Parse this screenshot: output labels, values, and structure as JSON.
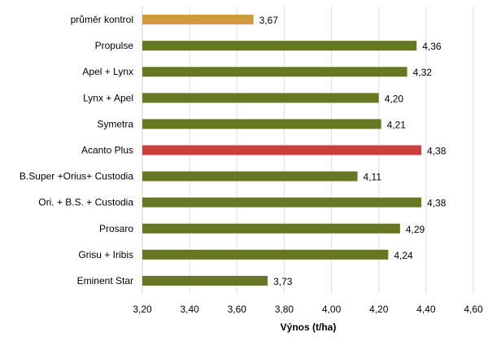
{
  "chart_data": {
    "type": "bar",
    "orientation": "horizontal",
    "categories": [
      "průměr kontrol",
      "Propulse",
      "Apel + Lynx",
      "Lynx + Apel",
      "Symetra",
      "Acanto Plus",
      "B.Super +Orius+ Custodia",
      "Ori. + B.S. + Custodia",
      "Prosaro",
      "Grisu + Iribis",
      "Eminent Star"
    ],
    "values": [
      3.67,
      4.36,
      4.32,
      4.2,
      4.21,
      4.38,
      4.11,
      4.38,
      4.29,
      4.24,
      3.73
    ],
    "data_labels": [
      "3,67",
      "4,36",
      "4,32",
      "4,20",
      "4,21",
      "4,38",
      "4,11",
      "4,38",
      "4,29",
      "4,24",
      "3,73"
    ],
    "bar_colors": [
      "#CF9A3E",
      "#667822",
      "#667822",
      "#667822",
      "#667822",
      "#CC3E3E",
      "#667822",
      "#667822",
      "#667822",
      "#667822",
      "#667822"
    ],
    "xlabel": "Výnos (t/ha)",
    "ylabel": "",
    "xlim": [
      3.2,
      4.6
    ],
    "xticks": [
      3.2,
      3.4,
      3.6,
      3.8,
      4.0,
      4.2,
      4.4,
      4.6
    ],
    "xtick_labels": [
      "3,20",
      "3,40",
      "3,60",
      "3,80",
      "4,00",
      "4,20",
      "4,40",
      "4,60"
    ],
    "grid": "vertical",
    "legend": "none"
  }
}
